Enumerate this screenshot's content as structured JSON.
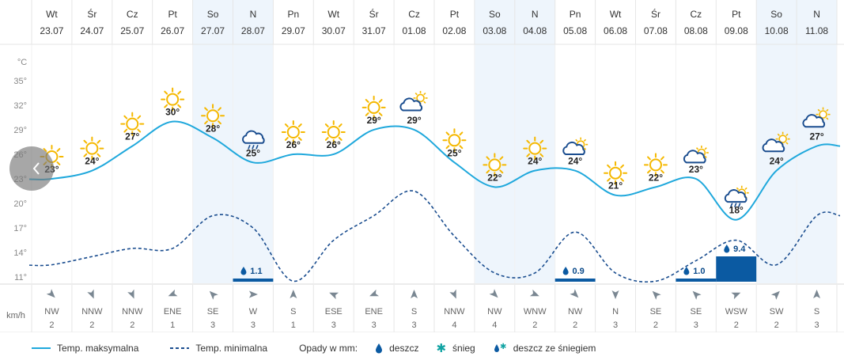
{
  "header": {
    "days": [
      {
        "day": "Wt",
        "date": "23.07"
      },
      {
        "day": "Śr",
        "date": "24.07"
      },
      {
        "day": "Cz",
        "date": "25.07"
      },
      {
        "day": "Pt",
        "date": "26.07"
      },
      {
        "day": "So",
        "date": "27.07"
      },
      {
        "day": "N",
        "date": "28.07"
      },
      {
        "day": "Pn",
        "date": "29.07"
      },
      {
        "day": "Wt",
        "date": "30.07"
      },
      {
        "day": "Śr",
        "date": "31.07"
      },
      {
        "day": "Cz",
        "date": "01.08"
      },
      {
        "day": "Pt",
        "date": "02.08"
      },
      {
        "day": "So",
        "date": "03.08"
      },
      {
        "day": "N",
        "date": "04.08"
      },
      {
        "day": "Pn",
        "date": "05.08"
      },
      {
        "day": "Wt",
        "date": "06.08"
      },
      {
        "day": "Śr",
        "date": "07.08"
      },
      {
        "day": "Cz",
        "date": "08.08"
      },
      {
        "day": "Pt",
        "date": "09.08"
      },
      {
        "day": "So",
        "date": "10.08"
      },
      {
        "day": "N",
        "date": "11.08"
      }
    ]
  },
  "chart_data": {
    "type": "line",
    "y_axis": {
      "unit_label": "°C",
      "ticks": [
        35,
        32,
        29,
        26,
        23,
        20,
        17,
        14,
        11
      ],
      "range": [
        8.5,
        37.5
      ]
    },
    "series": [
      {
        "name": "Temp. maksymalna",
        "values": [
          23,
          24,
          27,
          30,
          28,
          25,
          26,
          26,
          29,
          29,
          25,
          22,
          24,
          24,
          21,
          22,
          23,
          18,
          24,
          27
        ],
        "color": "#1fa8dc",
        "style": "solid"
      },
      {
        "name": "Temp. minimalna",
        "values": [
          12.5,
          13.5,
          14.5,
          14.5,
          18.5,
          17,
          10.5,
          15.5,
          18.5,
          21.5,
          16,
          11.5,
          11.5,
          16.5,
          11.5,
          10.5,
          13,
          15.5,
          12.5,
          18.5
        ],
        "color": "#1a4d8f",
        "style": "dashed"
      }
    ],
    "temp_labels": [
      "23°",
      "24°",
      "27°",
      "30°",
      "28°",
      "25°",
      "26°",
      "26°",
      "29°",
      "29°",
      "25°",
      "22°",
      "24°",
      "24°",
      "21°",
      "22°",
      "23°",
      "18°",
      "24°",
      "27°"
    ],
    "weather_icons": [
      "sun-icon",
      "sun-icon",
      "sun-icon",
      "sun-icon",
      "sun-icon",
      "rain-cloud-icon",
      "sun-icon",
      "sun-icon",
      "sun-icon",
      "partly-cloudy-icon",
      "sun-icon",
      "sun-icon",
      "sun-icon",
      "partly-cloudy-icon",
      "sun-icon",
      "sun-icon",
      "partly-cloudy-icon",
      "thunderstorm-rain-icon",
      "partly-cloudy-icon",
      "partly-cloudy-icon"
    ],
    "precipitation": [
      null,
      null,
      null,
      null,
      null,
      1.1,
      null,
      null,
      null,
      null,
      null,
      null,
      null,
      0.9,
      null,
      null,
      1.0,
      9.4,
      null,
      null
    ],
    "precipitation_labels": [
      "",
      "",
      "",
      "",
      "",
      "1.1",
      "",
      "",
      "",
      "",
      "",
      "",
      "",
      "0.9",
      "",
      "",
      "1.0",
      "9.4",
      "",
      ""
    ],
    "weekend_columns": [
      4,
      5,
      11,
      12,
      18,
      19
    ],
    "colors": {
      "weekend_bg": "#eef5fc",
      "max_line": "#1fa8dc",
      "min_line": "#1a4d8f",
      "precip": "#0b5aa2",
      "sun": "#f5b800",
      "grid": "#e6e6e6"
    }
  },
  "wind": {
    "unit_label": "km/h",
    "directions": [
      "NW",
      "NNW",
      "NNW",
      "ENE",
      "SE",
      "W",
      "S",
      "ESE",
      "ENE",
      "S",
      "NNW",
      "NW",
      "WNW",
      "NW",
      "N",
      "SE",
      "SE",
      "WSW",
      "SW",
      "S"
    ],
    "speeds": [
      "2",
      "2",
      "2",
      "1",
      "3",
      "3",
      "1",
      "3",
      "3",
      "3",
      "4",
      "4",
      "2",
      "2",
      "3",
      "2",
      "3",
      "2",
      "2",
      "3"
    ]
  },
  "legend": {
    "max_label": "Temp. maksymalna",
    "min_label": "Temp. minimalna",
    "precip_label": "Opady w mm:",
    "rain_label": "deszcz",
    "snow_label": "śnieg",
    "mixed_label": "deszcz ze śniegiem"
  }
}
